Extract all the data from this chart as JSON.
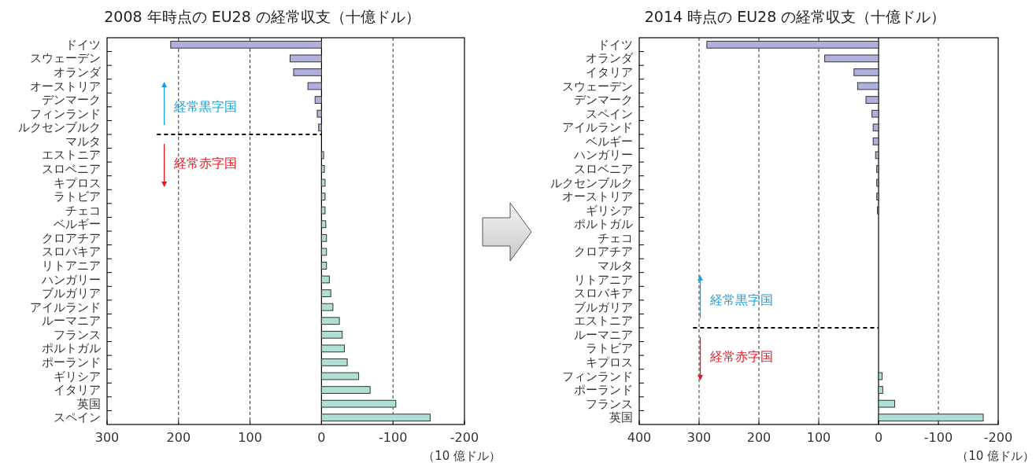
{
  "chart_data": [
    {
      "type": "bar",
      "orientation": "horizontal",
      "title": "2008 年時点の EU28 の経常収支（十億ドル）",
      "xlabel": "（10 億ドル）",
      "categories": [
        "ドイツ",
        "スウェーデン",
        "オランダ",
        "オーストリア",
        "デンマーク",
        "フィンランド",
        "ルクセンブルク",
        "マルタ",
        "エストニア",
        "スロベニア",
        "キプロス",
        "ラトビア",
        "チェコ",
        "ベルギー",
        "クロアチア",
        "スロバキア",
        "リトアニア",
        "ハンガリー",
        "ブルガリア",
        "アイルランド",
        "ルーマニア",
        "フランス",
        "ポルトガル",
        "ポーランド",
        "ギリシア",
        "イタリア",
        "英国",
        "スペイン"
      ],
      "values": [
        211,
        44,
        39,
        19,
        9,
        6,
        4,
        0,
        -3,
        -4,
        -5,
        -5,
        -5,
        -6,
        -7,
        -7,
        -7,
        -11,
        -13,
        -16,
        -25,
        -29,
        -32,
        -36,
        -52,
        -68,
        -104,
        -152
      ],
      "colors": [
        "#b0b0dc",
        "#b0b0dc",
        "#b0b0dc",
        "#b0b0dc",
        "#b0b0dc",
        "#b0b0dc",
        "#b0b0dc",
        "#b0dfd6",
        "#b0dfd6",
        "#b0dfd6",
        "#b0dfd6",
        "#b0dfd6",
        "#b0dfd6",
        "#b0dfd6",
        "#b0dfd6",
        "#b0dfd6",
        "#b0dfd6",
        "#b0dfd6",
        "#b0dfd6",
        "#b0dfd6",
        "#b0dfd6",
        "#b0dfd6",
        "#b0dfd6",
        "#b0dfd6",
        "#b0dfd6",
        "#b0dfd6",
        "#b0dfd6",
        "#b0dfd6"
      ],
      "xlim": [
        300,
        -200
      ],
      "xticks": [
        300,
        200,
        100,
        0,
        -100,
        -200
      ],
      "grid": "x",
      "ref_lines": [
        {
          "axis": "y",
          "value": "マルタ",
          "color": "#000000",
          "line_style": "dashed"
        }
      ],
      "annotations": [
        "経常黒字国",
        "経常赤字国"
      ]
    },
    {
      "type": "bar",
      "orientation": "horizontal",
      "title": "2014 時点の EU28 の経常収支（十億ドル）",
      "xlabel": "（10 億ドル）",
      "categories": [
        "ドイツ",
        "オランダ",
        "イタリア",
        "スウェーデン",
        "デンマーク",
        "スペイン",
        "アイルランド",
        "ベルギー",
        "ハンガリー",
        "スロベニア",
        "ルクセンブルク",
        "オーストリア",
        "ギリシア",
        "ポルトガル",
        "チェコ",
        "クロアチア",
        "マルタ",
        "リトアニア",
        "スロバキア",
        "ブルガリア",
        "エストニア",
        "ルーマニア",
        "ラトビア",
        "キプロス",
        "フィンランド",
        "ポーランド",
        "フランス",
        "英国"
      ],
      "values": [
        287,
        90,
        41,
        35,
        21,
        11,
        9,
        9,
        5,
        3,
        3,
        3,
        2,
        0,
        0,
        0,
        0,
        0,
        0,
        0,
        0,
        0,
        0,
        0,
        -6,
        -7,
        -27,
        -175
      ],
      "colors": [
        "#b0b0dc",
        "#b0b0dc",
        "#b0b0dc",
        "#b0b0dc",
        "#b0b0dc",
        "#b0b0dc",
        "#b0b0dc",
        "#b0b0dc",
        "#b0b0dc",
        "#b0b0dc",
        "#b0b0dc",
        "#b0b0dc",
        "#b0b0dc",
        "#b0b0dc",
        "#b0b0dc",
        "#b0b0dc",
        "#b0b0dc",
        "#b0b0dc",
        "#b0b0dc",
        "#b0b0dc",
        "#b0b0dc",
        "#b0dfd6",
        "#b0dfd6",
        "#b0dfd6",
        "#b0dfd6",
        "#b0dfd6",
        "#b0dfd6",
        "#b0dfd6"
      ],
      "xlim": [
        400,
        -200
      ],
      "xticks": [
        400,
        300,
        200,
        100,
        0,
        -100,
        -200
      ],
      "grid": "x",
      "ref_lines": [
        {
          "axis": "y",
          "value": "ルーマニア",
          "color": "#000000",
          "line_style": "dashed"
        }
      ],
      "annotations": [
        "経常黒字国",
        "経常赤字国"
      ]
    }
  ]
}
